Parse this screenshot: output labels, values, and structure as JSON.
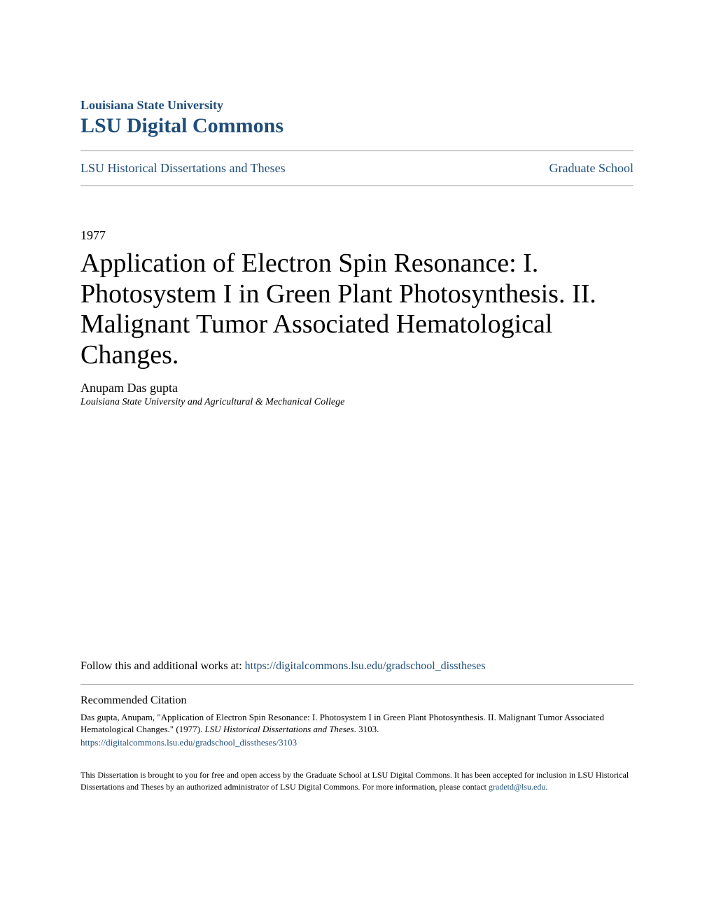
{
  "header": {
    "university": "Louisiana State University",
    "repository": "LSU Digital Commons"
  },
  "nav": {
    "left": "LSU Historical Dissertations and Theses",
    "right": "Graduate School"
  },
  "paper": {
    "year": "1977",
    "title": "Application of Electron Spin Resonance: I. Photosystem I in Green Plant Photosynthesis. II. Malignant Tumor Associated Hematological Changes.",
    "author": "Anupam Das gupta",
    "affiliation": "Louisiana State University and Agricultural & Mechanical College"
  },
  "follow": {
    "text": "Follow this and additional works at: ",
    "url": "https://digitalcommons.lsu.edu/gradschool_disstheses"
  },
  "citation": {
    "heading": "Recommended Citation",
    "text_part1": "Das gupta, Anupam, \"Application of Electron Spin Resonance: I. Photosystem I in Green Plant Photosynthesis. II. Malignant Tumor Associated Hematological Changes.\" (1977). ",
    "text_italic": "LSU Historical Dissertations and Theses",
    "text_part2": ". 3103.",
    "url": "https://digitalcommons.lsu.edu/gradschool_disstheses/3103"
  },
  "access": {
    "text_part1": "This Dissertation is brought to you for free and open access by the Graduate School at LSU Digital Commons. It has been accepted for inclusion in LSU Historical Dissertations and Theses by an authorized administrator of LSU Digital Commons. For more information, please contact ",
    "email": "gradetd@lsu.edu",
    "text_part2": "."
  },
  "colors": {
    "link": "#1f4e79",
    "text": "#000000",
    "divider": "#999999",
    "background": "#ffffff"
  },
  "typography": {
    "title_fontsize": 38,
    "repo_fontsize": 30,
    "nav_fontsize": 18,
    "body_fontsize": 16,
    "citation_fontsize": 13,
    "access_fontsize": 12
  }
}
